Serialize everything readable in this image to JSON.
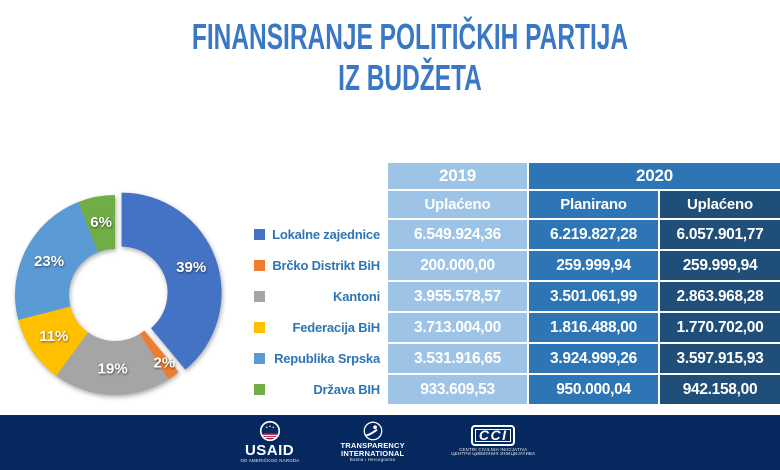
{
  "title": {
    "line1": "FINANSIRANJE POLITIČKIH PARTIJA",
    "line2": "IZ BUDŽETA"
  },
  "chart_data": {
    "type": "pie",
    "subtype": "donut",
    "title": "Finansiranje političkih partija iz budžeta",
    "categories": [
      "Lokalne zajednice",
      "Brčko Distrikt BiH",
      "Kantoni",
      "Federacija BiH",
      "Republika Srpska",
      "Država BIH"
    ],
    "values": [
      39,
      2,
      19,
      11,
      23,
      6
    ],
    "unit": "%",
    "labels": [
      "39%",
      "2%",
      "19%",
      "11%",
      "23%",
      "6%"
    ],
    "colors": [
      "#4472C4",
      "#ED7D31",
      "#A5A5A5",
      "#FFC000",
      "#5B9BD5",
      "#70AD47"
    ],
    "exploded_index": 0,
    "legend_position": "left of table, one entry per table row"
  },
  "table": {
    "col_groups": [
      {
        "label": "2019",
        "span": 1
      },
      {
        "label": "2020",
        "span": 2
      }
    ],
    "sub_headers": [
      "Uplaćeno",
      "Planirano",
      "Uplaćeno"
    ],
    "rows": [
      {
        "label": "Lokalne zajednice",
        "color": "#4472C4",
        "values": [
          "6.549.924,36",
          "6.219.827,28",
          "6.057.901,77"
        ]
      },
      {
        "label": "Brčko Distrikt BiH",
        "color": "#ED7D31",
        "values": [
          "200.000,00",
          "259.999,94",
          "259.999,94"
        ]
      },
      {
        "label": "Kantoni",
        "color": "#A5A5A5",
        "values": [
          "3.955.578,57",
          "3.501.061,99",
          "2.863.968,28"
        ]
      },
      {
        "label": "Federacija BiH",
        "color": "#FFC000",
        "values": [
          "3.713.004,00",
          "1.816.488,00",
          "1.770.702,00"
        ]
      },
      {
        "label": "Republika Srpska",
        "color": "#5B9BD5",
        "values": [
          "3.531.916,65",
          "3.924.999,26",
          "3.597.915,93"
        ]
      },
      {
        "label": "Država BIH",
        "color": "#70AD47",
        "values": [
          "933.609,53",
          "950.000,04",
          "942.158,00"
        ]
      }
    ]
  },
  "footer": {
    "logos": [
      {
        "name": "USAID",
        "subtext": "OD AMERIČKOG NARODA"
      },
      {
        "name": "TRANSPARENCY\nINTERNATIONAL",
        "subtext": "Bosna i Hercegovina"
      },
      {
        "name": "CCI",
        "subtext": "CENTRI CIVILNIH INICIJATIVA",
        "subtext2": "ЦЕНТРИ ЦИВИЛНИХ ИНИЦИЈАТИВА"
      }
    ]
  },
  "colors": {
    "title_blue": "#3A78C6",
    "label_blue": "#2E75B6",
    "col_light": "#9DC3E6",
    "col_mid": "#2E75B6",
    "col_dark": "#1F4E79",
    "footer_navy": "#05285F"
  }
}
